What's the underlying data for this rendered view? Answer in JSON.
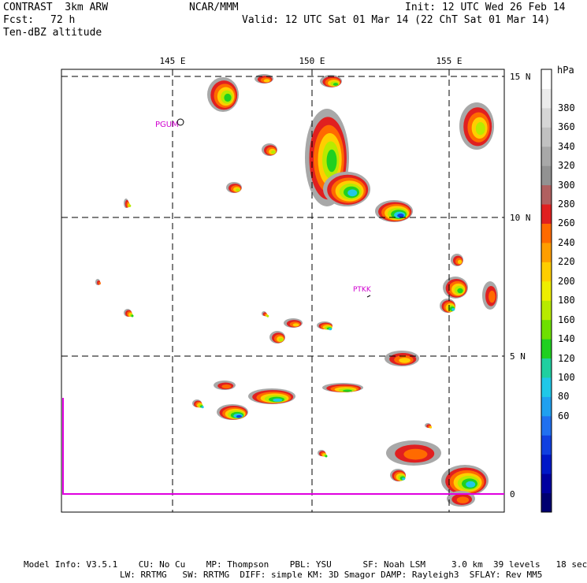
{
  "header": {
    "model": "CONTRAST  3km ARW",
    "org": "NCAR/MMM",
    "init": "Init: 12 UTC Wed 26 Feb 14",
    "fcst_label": "Fcst:",
    "fcst_value": "72 h",
    "valid": "Valid: 12 UTC Sat 01 Mar 14 (22 ChT Sat 01 Mar 14)",
    "field": "Ten-dBZ altitude"
  },
  "map": {
    "lon_labels": [
      "145 E",
      "150 E",
      "155 E"
    ],
    "lat_labels": [
      "15 N",
      "10 N",
      "5 N",
      "0"
    ],
    "stations": [
      "PGUM",
      "PTKK"
    ]
  },
  "colorbar": {
    "unit": "hPa",
    "levels": [
      "380",
      "360",
      "340",
      "320",
      "300",
      "280",
      "260",
      "240",
      "220",
      "200",
      "180",
      "160",
      "140",
      "120",
      "100",
      "80",
      "60"
    ],
    "colors": [
      "#ffffff",
      "#ebebeb",
      "#d6d6d6",
      "#c1c1c1",
      "#a8a8a8",
      "#929292",
      "#b06060",
      "#e02020",
      "#ff6a00",
      "#ff9e00",
      "#ffce00",
      "#eeee00",
      "#b8ea00",
      "#6ee000",
      "#20d020",
      "#20d0a0",
      "#20c8e8",
      "#20a0f0",
      "#2070f0",
      "#1040e0",
      "#0018c8",
      "#0000a0",
      "#000070"
    ]
  },
  "footer": {
    "line1": "Model Info: V3.5.1    CU: No Cu    MP: Thompson    PBL: YSU      SF: Noah LSM     3.0 km  39 levels   18 sec",
    "line2": "LW: RRTMG   SW: RRTMG  DIFF: simple KM: 3D Smagor DAMP: Rayleigh3  SFLAY: Rev MM5"
  }
}
